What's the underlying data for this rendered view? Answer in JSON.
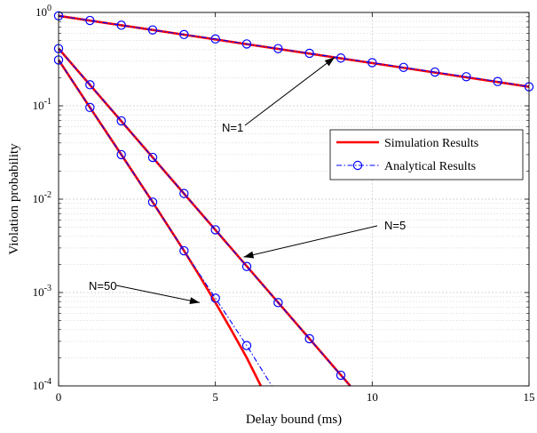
{
  "chart_data": {
    "type": "line",
    "xlabel": "Delay bound (ms)",
    "ylabel": "Violation probability",
    "xlim": [
      0,
      15
    ],
    "ylim": [
      0.0001,
      1
    ],
    "y_scale": "log",
    "grid": true,
    "legend_position": "right",
    "x_ticks": [
      "0",
      "5",
      "10",
      "15"
    ],
    "y_ticks": [
      {
        "value": 1,
        "base": "10",
        "exp": "0"
      },
      {
        "value": 0.1,
        "base": "10",
        "exp": "-1"
      },
      {
        "value": 0.01,
        "base": "10",
        "exp": "-2"
      },
      {
        "value": 0.001,
        "base": "10",
        "exp": "-3"
      },
      {
        "value": 0.0001,
        "base": "10",
        "exp": "-4"
      }
    ],
    "legend": [
      {
        "label": "Simulation Results",
        "color": "#ff0000",
        "style": "solid"
      },
      {
        "label": "Analytical Results",
        "color": "#0000ff",
        "style": "dashdot",
        "marker": "circle"
      }
    ],
    "series": [
      {
        "group": "N=1",
        "kind": "simulation",
        "x": [
          0,
          15
        ],
        "y": [
          0.92,
          0.16
        ]
      },
      {
        "group": "N=1",
        "kind": "analytical",
        "x": [
          0,
          1,
          2,
          3,
          4,
          5,
          6,
          7,
          8,
          9,
          10,
          11,
          12,
          13,
          14,
          15
        ],
        "y": [
          0.92,
          0.82,
          0.73,
          0.65,
          0.58,
          0.52,
          0.46,
          0.41,
          0.365,
          0.325,
          0.29,
          0.258,
          0.23,
          0.205,
          0.182,
          0.16
        ]
      },
      {
        "group": "N=5",
        "kind": "simulation",
        "x": [
          0,
          9.3
        ],
        "y": [
          0.41,
          0.0001
        ]
      },
      {
        "group": "N=5",
        "kind": "analytical",
        "x": [
          0,
          1,
          2,
          3,
          4,
          5,
          6,
          7,
          8,
          9,
          9.3
        ],
        "y": [
          0.41,
          0.168,
          0.069,
          0.028,
          0.0115,
          0.0047,
          0.0019,
          0.00078,
          0.00032,
          0.00013,
          0.0001
        ],
        "marker_count": 10
      },
      {
        "group": "N=50",
        "kind": "simulation",
        "x": [
          0,
          1,
          2,
          3,
          4,
          4.5,
          5,
          5.5,
          6,
          6.45
        ],
        "y": [
          0.31,
          0.096,
          0.03,
          0.0093,
          0.0028,
          0.0015,
          0.00078,
          0.0004,
          0.0002,
          0.0001
        ]
      },
      {
        "group": "N=50",
        "kind": "analytical",
        "x": [
          0,
          1,
          2,
          3,
          4,
          5,
          6,
          6.8
        ],
        "y": [
          0.31,
          0.096,
          0.03,
          0.0093,
          0.0028,
          0.00087,
          0.00027,
          0.0001
        ],
        "marker_count": 7
      }
    ],
    "annotations": [
      {
        "text": "N=1",
        "target": [
          8.8,
          0.33
        ]
      },
      {
        "text": "N=5",
        "target": [
          5.9,
          0.0024
        ]
      },
      {
        "text": "N=50",
        "target": [
          4.5,
          0.00078
        ]
      }
    ]
  }
}
